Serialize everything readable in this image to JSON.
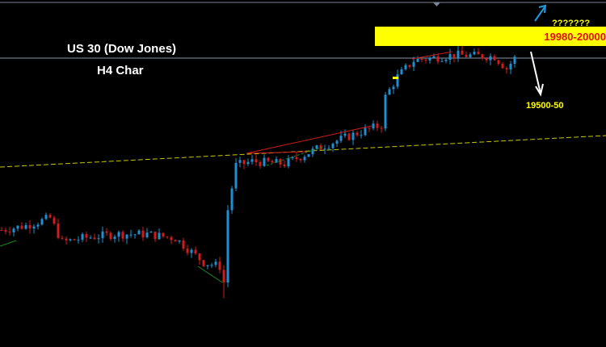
{
  "chart_data": {
    "type": "candlestick",
    "title": "US 30 (Dow Jones)",
    "subtitle": "H4 Char",
    "annotations": {
      "resistance_zone": "19980-20000",
      "upside_target": "???????",
      "downside_target": "19500-50"
    },
    "path_closes": [
      [
        0,
        18711
      ],
      [
        6,
        18740
      ],
      [
        12,
        18791
      ],
      [
        15,
        18631
      ],
      [
        20,
        18657
      ],
      [
        28,
        18684
      ],
      [
        36,
        18684
      ],
      [
        43,
        18657
      ],
      [
        50,
        18497
      ],
      [
        54,
        18470
      ],
      [
        55,
        18363
      ],
      [
        56,
        18845
      ],
      [
        58,
        19139
      ],
      [
        62,
        19166
      ],
      [
        70,
        19150
      ],
      [
        80,
        19273
      ],
      [
        88,
        19353
      ],
      [
        94,
        19407
      ],
      [
        95,
        19594
      ],
      [
        98,
        19728
      ],
      [
        102,
        19835
      ],
      [
        112,
        19872
      ],
      [
        122,
        19861
      ],
      [
        125,
        19781
      ],
      [
        127,
        19850
      ]
    ],
    "reference_level": 19860,
    "grid": false,
    "colors": {
      "up": "#1e8fd0",
      "down": "#d01c1c",
      "zone": "#ffff00",
      "zone_text": "#e01010",
      "annotation": "#ffff00",
      "up_arrow": "#1e9be0",
      "down_arrow": "#ffffff",
      "moving_average": "#c8c800",
      "trendline": "#d01c1c",
      "support_line": "#1a8a1a"
    }
  }
}
